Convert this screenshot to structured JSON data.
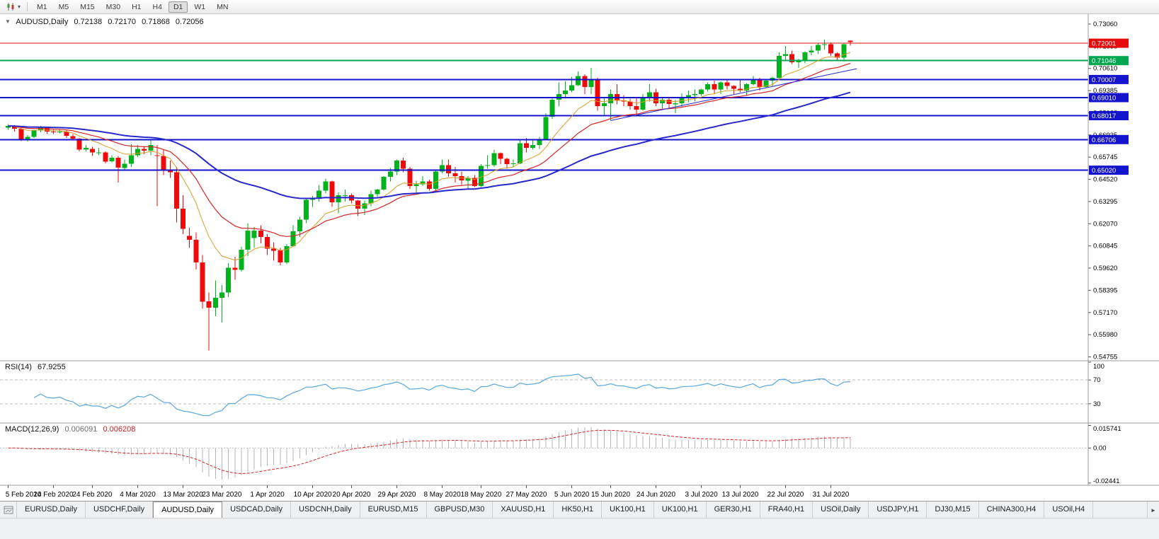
{
  "toolbar": {
    "timeframes": [
      "M1",
      "M5",
      "M15",
      "M30",
      "H1",
      "H4",
      "D1",
      "W1",
      "MN"
    ],
    "active_timeframe": "D1",
    "dropdown_icon": "▾"
  },
  "chart_title": {
    "collapse_icon": "▼",
    "symbol_period": "AUDUSD,Daily",
    "open": "0.72138",
    "high": "0.72170",
    "low": "0.71868",
    "close": "0.72056"
  },
  "indicators": {
    "rsi": {
      "name": "RSI(14)",
      "value": "67.9255"
    },
    "macd": {
      "name": "MACD(12,26,9)",
      "value_main": "0.006091",
      "value_signal": "0.006208"
    }
  },
  "chart_data": {
    "type": "candlestick",
    "symbol": "AUDUSD",
    "period": "Daily",
    "colors": {
      "up": "#00b21c",
      "down": "#ee0a0a",
      "ma_fast": "#d99d27",
      "ma_mid": "#d42525",
      "ma_slow": "#2828cc",
      "hline_blue": "#1414cc",
      "hline_green": "#00a650",
      "hline_red": "#e60c0c",
      "rsi_line": "#57a7e0",
      "macd_hist": "#b4b4b4",
      "macd_signal": "#d42525"
    },
    "price_axis": {
      "range": [
        0.54755,
        0.7306
      ],
      "ticks": [
        "0.73060",
        "0.71835",
        "0.70610",
        "0.69385",
        "0.68160",
        "0.66935",
        "0.65745",
        "0.64520",
        "0.63295",
        "0.62070",
        "0.60845",
        "0.59620",
        "0.58395",
        "0.57170",
        "0.55980",
        "0.54755"
      ]
    },
    "hlines": [
      {
        "price": 0.72001,
        "label": "0.72001",
        "color_key": "hline_red",
        "width": 1
      },
      {
        "price": 0.71046,
        "label": "0.71046",
        "color_key": "hline_green",
        "width": 2
      },
      {
        "price": 0.70007,
        "label": "0.70007",
        "color_key": "hline_blue",
        "width": 2
      },
      {
        "price": 0.6901,
        "label": "0.69010",
        "color_key": "hline_blue",
        "width": 2
      },
      {
        "price": 0.68017,
        "label": "0.68017",
        "color_key": "hline_blue",
        "width": 2
      },
      {
        "price": 0.66706,
        "label": "0.66706",
        "color_key": "hline_blue",
        "width": 2
      },
      {
        "price": 0.6502,
        "label": "0.65020",
        "color_key": "hline_blue",
        "width": 2
      }
    ],
    "moving_averages": [
      {
        "name": "ma-fast",
        "period": 10,
        "color_key": "ma_fast",
        "width": 1
      },
      {
        "name": "ma-mid",
        "period": 21,
        "color_key": "ma_mid",
        "width": 1.2
      },
      {
        "name": "ma-slow",
        "period": 55,
        "color_key": "ma_slow",
        "width": 2
      }
    ],
    "trendline": {
      "from_index": 93,
      "from_price": 0.6775,
      "to_index": 131,
      "to_price": 0.706
    },
    "candles": [
      [
        0.6735,
        0.6755,
        0.6725,
        0.6745
      ],
      [
        0.6745,
        0.675,
        0.6715,
        0.673
      ],
      [
        0.673,
        0.6735,
        0.6662,
        0.667
      ],
      [
        0.667,
        0.6695,
        0.666,
        0.6685
      ],
      [
        0.6685,
        0.6725,
        0.668,
        0.672
      ],
      [
        0.672,
        0.6745,
        0.671,
        0.6735
      ],
      [
        0.6735,
        0.674,
        0.67,
        0.6715
      ],
      [
        0.6715,
        0.6725,
        0.67,
        0.671
      ],
      [
        0.671,
        0.6725,
        0.6705,
        0.6715
      ],
      [
        0.6715,
        0.672,
        0.668,
        0.669
      ],
      [
        0.669,
        0.67,
        0.6665,
        0.6675
      ],
      [
        0.6675,
        0.668,
        0.6605,
        0.6615
      ],
      [
        0.6615,
        0.664,
        0.6605,
        0.6625
      ],
      [
        0.662,
        0.663,
        0.658,
        0.66
      ],
      [
        0.66,
        0.6625,
        0.6585,
        0.66
      ],
      [
        0.66,
        0.6605,
        0.654,
        0.655
      ],
      [
        0.655,
        0.6585,
        0.6545,
        0.657
      ],
      [
        0.657,
        0.658,
        0.6435,
        0.6515
      ],
      [
        0.6515,
        0.656,
        0.6505,
        0.6537
      ],
      [
        0.6537,
        0.6645,
        0.652,
        0.6585
      ],
      [
        0.6585,
        0.664,
        0.6575,
        0.662
      ],
      [
        0.662,
        0.6635,
        0.659,
        0.661
      ],
      [
        0.661,
        0.667,
        0.6585,
        0.664
      ],
      [
        0.6585,
        0.664,
        0.6305,
        0.658
      ],
      [
        0.658,
        0.6615,
        0.6475,
        0.65
      ],
      [
        0.65,
        0.6555,
        0.646,
        0.649
      ],
      [
        0.649,
        0.652,
        0.6215,
        0.629
      ],
      [
        0.629,
        0.6365,
        0.615,
        0.618
      ],
      [
        0.614,
        0.6185,
        0.6075,
        0.612
      ],
      [
        0.612,
        0.616,
        0.5955,
        0.5995
      ],
      [
        0.5995,
        0.6035,
        0.574,
        0.578
      ],
      [
        0.578,
        0.583,
        0.551,
        0.5745
      ],
      [
        0.5745,
        0.5895,
        0.57,
        0.58
      ],
      [
        0.58,
        0.587,
        0.5665,
        0.583
      ],
      [
        0.583,
        0.599,
        0.5805,
        0.5965
      ],
      [
        0.5965,
        0.6025,
        0.59,
        0.5955
      ],
      [
        0.5955,
        0.608,
        0.5945,
        0.6065
      ],
      [
        0.6065,
        0.621,
        0.603,
        0.617
      ],
      [
        0.613,
        0.619,
        0.6075,
        0.617
      ],
      [
        0.617,
        0.62,
        0.61,
        0.6135
      ],
      [
        0.6135,
        0.615,
        0.6035,
        0.607
      ],
      [
        0.607,
        0.6105,
        0.6005,
        0.606
      ],
      [
        0.606,
        0.6075,
        0.598,
        0.5995
      ],
      [
        0.5995,
        0.6095,
        0.5985,
        0.6085
      ],
      [
        0.6085,
        0.62,
        0.608,
        0.6165
      ],
      [
        0.6165,
        0.6245,
        0.6135,
        0.623
      ],
      [
        0.623,
        0.635,
        0.621,
        0.634
      ],
      [
        0.634,
        0.636,
        0.63,
        0.6345
      ],
      [
        0.6345,
        0.642,
        0.633,
        0.639
      ],
      [
        0.639,
        0.6455,
        0.6375,
        0.644
      ],
      [
        0.644,
        0.6445,
        0.63,
        0.6325
      ],
      [
        0.6325,
        0.638,
        0.6265,
        0.6365
      ],
      [
        0.6365,
        0.6395,
        0.633,
        0.6365
      ],
      [
        0.6365,
        0.6375,
        0.632,
        0.6335
      ],
      [
        0.6335,
        0.634,
        0.625,
        0.629
      ],
      [
        0.629,
        0.6335,
        0.6255,
        0.632
      ],
      [
        0.632,
        0.639,
        0.6305,
        0.637
      ],
      [
        0.637,
        0.64,
        0.6355,
        0.6395
      ],
      [
        0.6395,
        0.647,
        0.639,
        0.6465
      ],
      [
        0.6465,
        0.6515,
        0.644,
        0.6495
      ],
      [
        0.6495,
        0.656,
        0.6475,
        0.6555
      ],
      [
        0.6555,
        0.657,
        0.649,
        0.651
      ],
      [
        0.651,
        0.652,
        0.64,
        0.6415
      ],
      [
        0.6415,
        0.6445,
        0.6375,
        0.6425
      ],
      [
        0.6425,
        0.647,
        0.6415,
        0.644
      ],
      [
        0.644,
        0.645,
        0.639,
        0.64
      ],
      [
        0.64,
        0.6505,
        0.639,
        0.6495
      ],
      [
        0.6495,
        0.656,
        0.6485,
        0.653
      ],
      [
        0.653,
        0.656,
        0.6465,
        0.6485
      ],
      [
        0.6485,
        0.652,
        0.6435,
        0.647
      ],
      [
        0.647,
        0.6495,
        0.642,
        0.6445
      ],
      [
        0.6445,
        0.647,
        0.64,
        0.646
      ],
      [
        0.646,
        0.6475,
        0.641,
        0.6415
      ],
      [
        0.6415,
        0.6535,
        0.641,
        0.6525
      ],
      [
        0.6525,
        0.6585,
        0.651,
        0.653
      ],
      [
        0.653,
        0.6615,
        0.652,
        0.6595
      ],
      [
        0.6595,
        0.66,
        0.6535,
        0.6565
      ],
      [
        0.6565,
        0.657,
        0.651,
        0.6535
      ],
      [
        0.6535,
        0.656,
        0.652,
        0.654
      ],
      [
        0.654,
        0.6665,
        0.6535,
        0.665
      ],
      [
        0.665,
        0.668,
        0.66,
        0.6625
      ],
      [
        0.6625,
        0.6665,
        0.6615,
        0.664
      ],
      [
        0.664,
        0.6685,
        0.662,
        0.667
      ],
      [
        0.667,
        0.6815,
        0.667,
        0.6795
      ],
      [
        0.6795,
        0.69,
        0.6785,
        0.689
      ],
      [
        0.689,
        0.6985,
        0.6855,
        0.692
      ],
      [
        0.692,
        0.699,
        0.6905,
        0.694
      ],
      [
        0.694,
        0.7015,
        0.693,
        0.697
      ],
      [
        0.697,
        0.7045,
        0.6965,
        0.702
      ],
      [
        0.702,
        0.703,
        0.692,
        0.696
      ],
      [
        0.696,
        0.7065,
        0.692,
        0.7
      ],
      [
        0.7,
        0.701,
        0.683,
        0.6855
      ],
      [
        0.6855,
        0.6905,
        0.68,
        0.687
      ],
      [
        0.687,
        0.6945,
        0.6775,
        0.692
      ],
      [
        0.692,
        0.6975,
        0.6865,
        0.6885
      ],
      [
        0.6885,
        0.6915,
        0.6855,
        0.688
      ],
      [
        0.688,
        0.6895,
        0.6835,
        0.6855
      ],
      [
        0.6855,
        0.6905,
        0.681,
        0.6835
      ],
      [
        0.6835,
        0.692,
        0.683,
        0.6905
      ],
      [
        0.6905,
        0.6975,
        0.688,
        0.693
      ],
      [
        0.693,
        0.695,
        0.6855,
        0.687
      ],
      [
        0.687,
        0.6905,
        0.684,
        0.689
      ],
      [
        0.689,
        0.69,
        0.6845,
        0.6865
      ],
      [
        0.6865,
        0.689,
        0.6815,
        0.687
      ],
      [
        0.687,
        0.6925,
        0.685,
        0.6905
      ],
      [
        0.6905,
        0.694,
        0.6875,
        0.6915
      ],
      [
        0.6915,
        0.6945,
        0.688,
        0.692
      ],
      [
        0.692,
        0.695,
        0.691,
        0.6945
      ],
      [
        0.6945,
        0.6985,
        0.6935,
        0.6975
      ],
      [
        0.6975,
        0.6995,
        0.692,
        0.6945
      ],
      [
        0.6945,
        0.699,
        0.692,
        0.6985
      ],
      [
        0.6985,
        0.7,
        0.6945,
        0.6965
      ],
      [
        0.6965,
        0.697,
        0.692,
        0.695
      ],
      [
        0.695,
        0.7,
        0.693,
        0.694
      ],
      [
        0.694,
        0.698,
        0.691,
        0.6975
      ],
      [
        0.6975,
        0.702,
        0.697,
        0.7005
      ],
      [
        0.7005,
        0.701,
        0.694,
        0.696
      ],
      [
        0.696,
        0.7005,
        0.6955,
        0.6995
      ],
      [
        0.6995,
        0.7015,
        0.6965,
        0.701
      ],
      [
        0.701,
        0.715,
        0.7,
        0.713
      ],
      [
        0.713,
        0.7185,
        0.711,
        0.714
      ],
      [
        0.714,
        0.716,
        0.7085,
        0.7095
      ],
      [
        0.7095,
        0.7115,
        0.7065,
        0.7105
      ],
      [
        0.7105,
        0.7155,
        0.709,
        0.715
      ],
      [
        0.715,
        0.7185,
        0.7135,
        0.716
      ],
      [
        0.716,
        0.72,
        0.714,
        0.719
      ],
      [
        0.719,
        0.722,
        0.7165,
        0.7195
      ],
      [
        0.7195,
        0.7205,
        0.713,
        0.7145
      ],
      [
        0.7145,
        0.715,
        0.7105,
        0.712
      ],
      [
        0.712,
        0.72,
        0.71,
        0.7195
      ],
      [
        0.72138,
        0.7217,
        0.71868,
        0.72056
      ]
    ],
    "date_ticks": [
      {
        "index": 0,
        "label": "5 Feb 2020"
      },
      {
        "index": 7,
        "label": "14 Feb 2020"
      },
      {
        "index": 13,
        "label": "24 Feb 2020"
      },
      {
        "index": 20,
        "label": "4 Mar 2020"
      },
      {
        "index": 27,
        "label": "13 Mar 2020"
      },
      {
        "index": 33,
        "label": "23 Mar 2020"
      },
      {
        "index": 40,
        "label": "1 Apr 2020"
      },
      {
        "index": 47,
        "label": "10 Apr 2020"
      },
      {
        "index": 53,
        "label": "20 Apr 2020"
      },
      {
        "index": 60,
        "label": "29 Apr 2020"
      },
      {
        "index": 67,
        "label": "8 May 2020"
      },
      {
        "index": 73,
        "label": "18 May 2020"
      },
      {
        "index": 80,
        "label": "27 May 2020"
      },
      {
        "index": 87,
        "label": "5 Jun 2020"
      },
      {
        "index": 93,
        "label": "15 Jun 2020"
      },
      {
        "index": 100,
        "label": "24 Jun 2020"
      },
      {
        "index": 107,
        "label": "3 Jul 2020"
      },
      {
        "index": 113,
        "label": "13 Jul 2020"
      },
      {
        "index": 120,
        "label": "22 Jul 2020"
      },
      {
        "index": 127,
        "label": "31 Jul 2020"
      }
    ],
    "rsi_panel": {
      "period": 14,
      "levels": [
        {
          "value": 100,
          "label": "100",
          "dashed": false
        },
        {
          "value": 70,
          "label": "70",
          "dashed": true
        },
        {
          "value": 30,
          "label": "30",
          "dashed": true
        }
      ]
    },
    "macd_panel": {
      "fast": 12,
      "slow": 26,
      "signal": 9,
      "ticks": [
        {
          "value": 0.015741,
          "label": "0.015741"
        },
        {
          "value": 0,
          "label": "0.00"
        },
        {
          "value": -0.02441,
          "label": "-0.02441"
        }
      ]
    }
  },
  "tab_bar": {
    "tabs": [
      "EURUSD,Daily",
      "USDCHF,Daily",
      "AUDUSD,Daily",
      "USDCAD,Daily",
      "USDCNH,Daily",
      "EURUSD,M15",
      "GBPUSD,M30",
      "XAUUSD,H1",
      "HK50,H1",
      "UK100,H1",
      "UK100,H1",
      "GER30,H1",
      "FRA40,H1",
      "USOil,Daily",
      "USDJPY,H1",
      "DJ30,M15",
      "CHINA300,H4",
      "USOil,H4"
    ],
    "active_index": 2,
    "scroll_right_icon": "►"
  }
}
